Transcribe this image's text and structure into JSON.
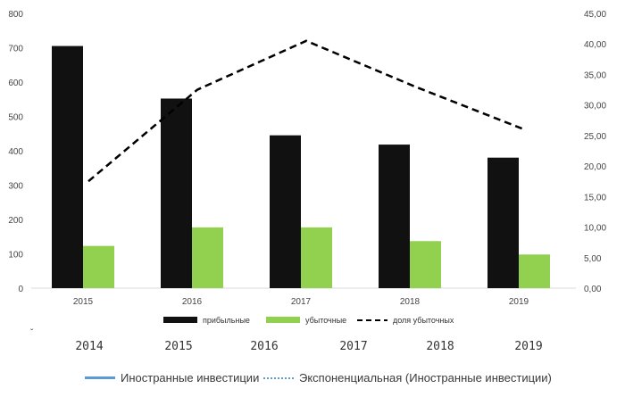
{
  "chart_data": {
    "type": "bar",
    "categories": [
      "2015",
      "2016",
      "2017",
      "2018",
      "2019"
    ],
    "series": [
      {
        "name": "прибыльные",
        "type": "bar",
        "axis": "left",
        "color": "#111111",
        "values": [
          705,
          552,
          445,
          418,
          380
        ]
      },
      {
        "name": "убыточные",
        "type": "bar",
        "axis": "left",
        "color": "#92d050",
        "values": [
          123,
          177,
          177,
          137,
          98
        ]
      },
      {
        "name": "доля убыточных",
        "type": "line",
        "axis": "right",
        "style": "dashed",
        "color": "#000000",
        "values": [
          17.5,
          32.5,
          40.5,
          33.0,
          26.0
        ]
      }
    ],
    "ylim": [
      0,
      800
    ],
    "yticks": [
      "0",
      "100",
      "200",
      "300",
      "400",
      "500",
      "600",
      "700",
      "800"
    ],
    "y2lim": [
      0,
      45
    ],
    "y2ticks": [
      "0,00",
      "5,00",
      "10,00",
      "15,00",
      "20,00",
      "25,00",
      "30,00",
      "35,00",
      "40,00",
      "45,00"
    ],
    "grid": false,
    "legend_position": "bottom"
  },
  "underlay": {
    "mark": "ˇ",
    "years": [
      "2014",
      "2015",
      "2016",
      "2017",
      "2018",
      "2019"
    ],
    "legend": [
      {
        "label": "Иностранные инвестиции",
        "style": "solid",
        "color": "#5b9bd5"
      },
      {
        "label": "Экспоненциальная (Иностранные инвестиции)",
        "style": "dotted",
        "color": "#5b9bd5"
      }
    ]
  }
}
